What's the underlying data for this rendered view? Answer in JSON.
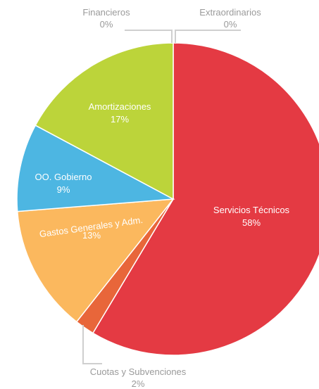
{
  "chart_data": {
    "type": "pie",
    "slices": [
      {
        "label": "Servicios Técnicos",
        "value": 58,
        "display": "58%",
        "color": "#e43a43"
      },
      {
        "label": "Cuotas y Subvenciones",
        "value": 2,
        "display": "2%",
        "color": "#e8663a"
      },
      {
        "label": "Gastos Generales y Adm.",
        "value": 13,
        "display": "13%",
        "color": "#fbb85e"
      },
      {
        "label": "OO. Gobierno",
        "value": 9,
        "display": "9%",
        "color": "#4db6e2"
      },
      {
        "label": "Amortizaciones",
        "value": 17,
        "display": "17%",
        "color": "#bcd43a"
      },
      {
        "label": "Financieros",
        "value": 0,
        "display": "0%",
        "color": "#9a9a9a"
      },
      {
        "label": "Extraordinarios",
        "value": 0,
        "display": "0%",
        "color": "#9a9a9a"
      }
    ]
  }
}
